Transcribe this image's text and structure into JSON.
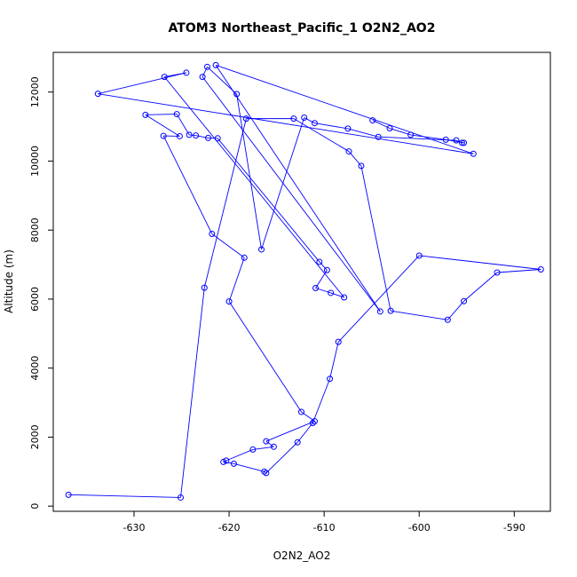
{
  "chart_data": {
    "type": "line",
    "title": "ATOM3 Northeast_Pacific_1 O2N2_AO2",
    "xlabel": "O2N2_AO2",
    "ylabel": "Altitude (m)",
    "xlim": [
      -638.5,
      -586.2
    ],
    "ylim": [
      -150,
      13150
    ],
    "xticks": [
      -630,
      -620,
      -610,
      -600,
      -590
    ],
    "yticks": [
      0,
      2000,
      4000,
      6000,
      8000,
      10000,
      12000
    ],
    "grid": false,
    "legend": "none",
    "series_color": "#0000ff",
    "x": [
      -636.9,
      -625.1,
      -622.6,
      -618.2,
      -613.2,
      -607.4,
      -606.1,
      -603.0,
      -597.0,
      -595.3,
      -591.8,
      -587.2,
      -600.0,
      -608.5,
      -609.4,
      -611.2,
      -612.8,
      -616.1,
      -616.3,
      -619.5,
      -620.6,
      -620.3,
      -617.5,
      -615.3,
      -616.1,
      -611.0,
      -612.4,
      -620.0,
      -618.4,
      -621.8,
      -626.9,
      -625.2,
      -628.8,
      -625.5,
      -624.2,
      -623.5,
      -622.2,
      -621.2,
      -610.5,
      -609.7,
      -610.9,
      -609.3,
      -607.9,
      -626.8,
      -624.5,
      -633.8,
      -594.3,
      -621.4,
      -604.1,
      -622.8,
      -622.3,
      -619.2,
      -616.6,
      -612.1,
      -611.0,
      -607.5,
      -604.3,
      -596.1,
      -595.5,
      -595.3,
      -597.2,
      -600.9,
      -603.1,
      -604.9
    ],
    "y": [
      330,
      250,
      6330,
      11230,
      11230,
      10280,
      9860,
      5660,
      5400,
      5940,
      6770,
      6860,
      7260,
      4760,
      3690,
      2410,
      1850,
      960,
      1000,
      1230,
      1280,
      1320,
      1640,
      1720,
      1880,
      2460,
      2730,
      5930,
      7200,
      7890,
      10730,
      10720,
      11340,
      11360,
      10760,
      10740,
      10670,
      10660,
      7080,
      6840,
      6320,
      6180,
      6050,
      12440,
      12560,
      11950,
      10210,
      12780,
      5640,
      12440,
      12730,
      11940,
      7440,
      11260,
      11100,
      10940,
      10700,
      10600,
      10530,
      10530,
      10620,
      10760,
      10950,
      11180
    ],
    "segments_note": ""
  }
}
